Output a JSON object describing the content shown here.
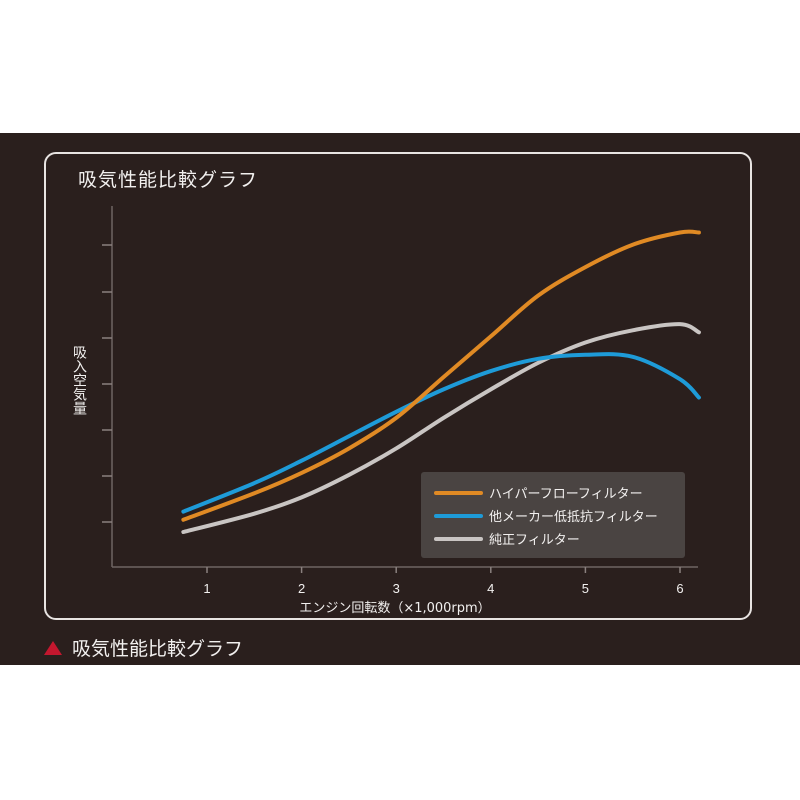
{
  "colors": {
    "orange": "#e08a24",
    "blue": "#1e9bd8",
    "gray": "#c9c5c3",
    "accent": "#c3172e",
    "background": "#2a1f1d"
  },
  "chart_data": {
    "type": "line",
    "title": "吸気性能比較グラフ",
    "xlabel": "エンジン回転数（×1,000rpm）",
    "ylabel": "吸入空気量",
    "x_ticks": [
      "1",
      "2",
      "3",
      "4",
      "5",
      "6"
    ],
    "xlim": [
      0,
      6.2
    ],
    "ylim": [
      0,
      8
    ],
    "grid": false,
    "legend_position": "bottom-right",
    "series": [
      {
        "name": "ハイパーフローフィルター",
        "color": "#e08a24",
        "x": [
          0.75,
          1.5,
          2.0,
          2.5,
          3.0,
          3.5,
          4.0,
          4.5,
          5.0,
          5.5,
          6.0,
          6.2
        ],
        "y": [
          0.3,
          0.95,
          1.45,
          2.05,
          2.8,
          3.8,
          4.8,
          5.8,
          6.5,
          7.05,
          7.35,
          7.35
        ]
      },
      {
        "name": "他メーカー低抵抗フィルター",
        "color": "#1e9bd8",
        "x": [
          0.75,
          1.5,
          2.0,
          2.5,
          3.0,
          3.5,
          4.0,
          4.5,
          5.0,
          5.5,
          6.0,
          6.2
        ],
        "y": [
          0.5,
          1.2,
          1.75,
          2.35,
          2.95,
          3.5,
          3.95,
          4.25,
          4.35,
          4.3,
          3.75,
          3.3
        ]
      },
      {
        "name": "純正フィルター",
        "color": "#c9c5c3",
        "x": [
          0.75,
          1.5,
          2.0,
          2.5,
          3.0,
          3.5,
          4.0,
          4.5,
          5.0,
          5.5,
          6.0,
          6.2
        ],
        "y": [
          0.0,
          0.45,
          0.85,
          1.4,
          2.05,
          2.8,
          3.5,
          4.15,
          4.65,
          4.95,
          5.1,
          4.9
        ]
      }
    ]
  },
  "caption": "吸気性能比較グラフ"
}
